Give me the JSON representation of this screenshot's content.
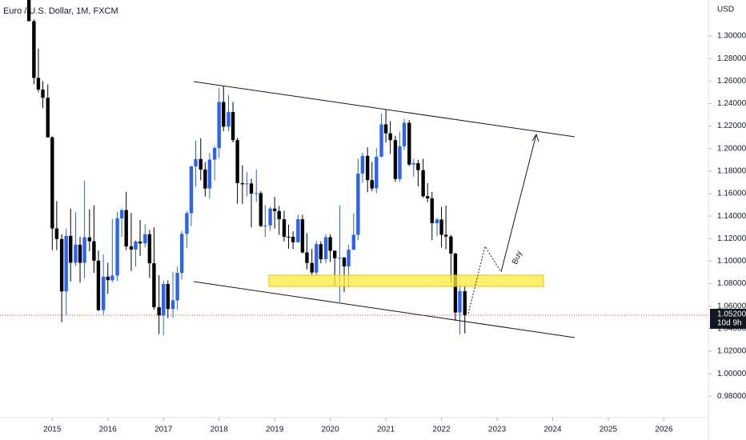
{
  "chart_data": {
    "type": "candlestick",
    "title": "Euro / U.S. Dollar, 1M, FXCM",
    "currency": "USD",
    "annotations": [
      "Buy"
    ],
    "up_color": "#2962ff",
    "down_color": "#000000",
    "xlim": [
      2014.06,
      2026.8
    ],
    "xticks": [
      2015,
      2016,
      2017,
      2018,
      2019,
      2020,
      2021,
      2022,
      2023,
      2024,
      2025,
      2026
    ],
    "ylim": [
      0.961,
      1.332
    ],
    "yticks": [
      {
        "value": 0.98,
        "label": "0.98000"
      },
      {
        "value": 1.0,
        "label": "1.00000"
      },
      {
        "value": 1.02,
        "label": "1.02000"
      },
      {
        "value": 1.04,
        "label": "1.04000"
      },
      {
        "value": 1.06,
        "label": "1.06000"
      },
      {
        "value": 1.08,
        "label": "1.08000"
      },
      {
        "value": 1.1,
        "label": "1.10000"
      },
      {
        "value": 1.12,
        "label": "1.12000"
      },
      {
        "value": 1.14,
        "label": "1.14000"
      },
      {
        "value": 1.16,
        "label": "1.16000"
      },
      {
        "value": 1.18,
        "label": "1.18000"
      },
      {
        "value": 1.2,
        "label": "1.20000"
      },
      {
        "value": 1.22,
        "label": "1.22000"
      },
      {
        "value": 1.24,
        "label": "1.24000"
      },
      {
        "value": 1.26,
        "label": "1.26000"
      },
      {
        "value": 1.28,
        "label": "1.28000"
      },
      {
        "value": 1.3,
        "label": "1.30000"
      }
    ],
    "last_price": {
      "value": 1.052,
      "label": "1.05200"
    },
    "countdown": "10d 9h",
    "last_price_color": "#f23645",
    "x": [
      2014.58,
      2014.67,
      2014.75,
      2014.83,
      2014.92,
      2015.0,
      2015.08,
      2015.17,
      2015.25,
      2015.33,
      2015.42,
      2015.5,
      2015.58,
      2015.67,
      2015.75,
      2015.83,
      2015.92,
      2016.0,
      2016.08,
      2016.17,
      2016.25,
      2016.33,
      2016.42,
      2016.5,
      2016.58,
      2016.67,
      2016.75,
      2016.83,
      2016.92,
      2017.0,
      2017.08,
      2017.17,
      2017.25,
      2017.33,
      2017.42,
      2017.5,
      2017.58,
      2017.67,
      2017.75,
      2017.83,
      2017.92,
      2018.0,
      2018.08,
      2018.17,
      2018.25,
      2018.33,
      2018.42,
      2018.5,
      2018.58,
      2018.67,
      2018.75,
      2018.83,
      2018.92,
      2019.0,
      2019.08,
      2019.17,
      2019.25,
      2019.33,
      2019.42,
      2019.5,
      2019.58,
      2019.67,
      2019.75,
      2019.83,
      2019.92,
      2020.0,
      2020.08,
      2020.17,
      2020.25,
      2020.33,
      2020.42,
      2020.5,
      2020.58,
      2020.67,
      2020.75,
      2020.83,
      2020.92,
      2021.0,
      2021.08,
      2021.17,
      2021.25,
      2021.33,
      2021.42,
      2021.5,
      2021.58,
      2021.67,
      2021.75,
      2021.83,
      2021.92,
      2022.0,
      2022.08,
      2022.17,
      2022.25,
      2022.33,
      2022.42
    ],
    "open": [
      1.3387,
      1.3132,
      1.2628,
      1.2525,
      1.2452,
      1.21,
      1.129,
      1.1197,
      1.0731,
      1.1224,
      1.0986,
      1.1146,
      1.0985,
      1.1211,
      1.1177,
      1.1004,
      1.0565,
      1.0862,
      1.0831,
      1.0872,
      1.138,
      1.1454,
      1.1131,
      1.1103,
      1.1174,
      1.1157,
      1.1239,
      1.0981,
      1.0591,
      1.0517,
      1.0797,
      1.0575,
      1.0652,
      1.0895,
      1.1243,
      1.1426,
      1.1842,
      1.1907,
      1.1814,
      1.1645,
      1.1902,
      1.2005,
      1.2414,
      1.2195,
      1.2324,
      1.2075,
      1.1693,
      1.1683,
      1.169,
      1.16,
      1.1604,
      1.1312,
      1.1317,
      1.1467,
      1.1445,
      1.1372,
      1.1217,
      1.1216,
      1.1168,
      1.1372,
      1.1077,
      1.0984,
      1.0899,
      1.1151,
      1.1017,
      1.1213,
      1.1092,
      1.1026,
      1.1031,
      1.0954,
      1.1101,
      1.1234,
      1.1778,
      1.1935,
      1.172,
      1.1646,
      1.1928,
      1.2215,
      1.2136,
      1.2075,
      1.173,
      1.202,
      1.2229,
      1.1858,
      1.187,
      1.1808,
      1.1577,
      1.1558,
      1.1337,
      1.137,
      1.1234,
      1.1219,
      1.1067,
      1.0544,
      1.0733
    ],
    "high": [
      1.3433,
      1.3148,
      1.2887,
      1.26,
      1.257,
      1.211,
      1.1534,
      1.124,
      1.129,
      1.1467,
      1.1436,
      1.1216,
      1.1714,
      1.146,
      1.1495,
      1.1094,
      1.106,
      1.0986,
      1.1376,
      1.1439,
      1.1464,
      1.1616,
      1.1428,
      1.1186,
      1.1366,
      1.1327,
      1.1278,
      1.13,
      1.0875,
      1.0829,
      1.0829,
      1.0906,
      1.0951,
      1.1268,
      1.1445,
      1.1846,
      1.207,
      1.2092,
      1.188,
      1.1961,
      1.2023,
      1.2537,
      1.2556,
      1.2476,
      1.2414,
      1.2096,
      1.1852,
      1.1791,
      1.1733,
      1.1815,
      1.1621,
      1.15,
      1.1486,
      1.157,
      1.1489,
      1.1448,
      1.1324,
      1.1265,
      1.1412,
      1.1412,
      1.1249,
      1.1109,
      1.1179,
      1.1175,
      1.1239,
      1.1239,
      1.1097,
      1.1495,
      1.1038,
      1.1147,
      1.1422,
      1.1908,
      1.1966,
      1.2011,
      1.1881,
      1.2004,
      1.231,
      1.2349,
      1.2243,
      1.2113,
      1.215,
      1.2266,
      1.2254,
      1.1909,
      1.19,
      1.1909,
      1.1692,
      1.1616,
      1.1386,
      1.1482,
      1.1495,
      1.1233,
      1.1076,
      1.0787,
      1.0773
    ],
    "low": [
      1.3131,
      1.2571,
      1.25,
      1.2358,
      1.2098,
      1.1098,
      1.1098,
      1.0457,
      1.052,
      1.0819,
      1.0955,
      1.0809,
      1.0848,
      1.1087,
      1.0896,
      1.0557,
      1.0524,
      1.0711,
      1.081,
      1.0822,
      1.1217,
      1.1098,
      1.0912,
      1.0952,
      1.1046,
      1.1122,
      1.0852,
      1.057,
      1.0352,
      1.034,
      1.0494,
      1.0495,
      1.057,
      1.0838,
      1.1118,
      1.1312,
      1.1662,
      1.1717,
      1.1574,
      1.1554,
      1.1717,
      1.1916,
      1.2155,
      1.2155,
      1.2055,
      1.151,
      1.1508,
      1.1575,
      1.1301,
      1.1526,
      1.1302,
      1.1215,
      1.1269,
      1.1289,
      1.1234,
      1.1176,
      1.111,
      1.1107,
      1.1168,
      1.1069,
      1.0926,
      1.0879,
      1.0879,
      1.0981,
      1.0981,
      1.0992,
      1.0778,
      1.0636,
      1.0727,
      1.0767,
      1.1101,
      1.1185,
      1.1696,
      1.1612,
      1.1622,
      1.1603,
      1.1923,
      1.2055,
      1.1952,
      1.1704,
      1.1704,
      1.1986,
      1.1845,
      1.1752,
      1.1664,
      1.1563,
      1.1524,
      1.1186,
      1.1222,
      1.1121,
      1.1106,
      1.0806,
      1.0471,
      1.0349,
      1.0358
    ],
    "close": [
      1.3132,
      1.2628,
      1.2525,
      1.2452,
      1.21,
      1.129,
      1.1197,
      1.0731,
      1.1224,
      1.0986,
      1.1146,
      1.0985,
      1.1211,
      1.1177,
      1.1004,
      1.0565,
      1.0862,
      1.0831,
      1.0872,
      1.138,
      1.1454,
      1.1131,
      1.1103,
      1.1174,
      1.1157,
      1.1239,
      1.0981,
      1.0591,
      1.0517,
      1.0797,
      1.0575,
      1.0652,
      1.0895,
      1.1243,
      1.1426,
      1.1842,
      1.1907,
      1.1814,
      1.1645,
      1.1902,
      1.2005,
      1.2414,
      1.2195,
      1.2324,
      1.2075,
      1.1693,
      1.1683,
      1.169,
      1.16,
      1.1604,
      1.1312,
      1.1317,
      1.1467,
      1.1445,
      1.1372,
      1.1217,
      1.1216,
      1.1168,
      1.1372,
      1.1077,
      1.0984,
      1.0899,
      1.1151,
      1.1017,
      1.1213,
      1.1092,
      1.1026,
      1.1031,
      1.0954,
      1.1101,
      1.1234,
      1.1778,
      1.1935,
      1.172,
      1.1646,
      1.1928,
      1.2215,
      1.2136,
      1.2075,
      1.173,
      1.202,
      1.2229,
      1.1858,
      1.187,
      1.1808,
      1.1577,
      1.1558,
      1.1337,
      1.137,
      1.1234,
      1.1219,
      1.1067,
      1.0544,
      1.0733,
      1.052
    ]
  }
}
